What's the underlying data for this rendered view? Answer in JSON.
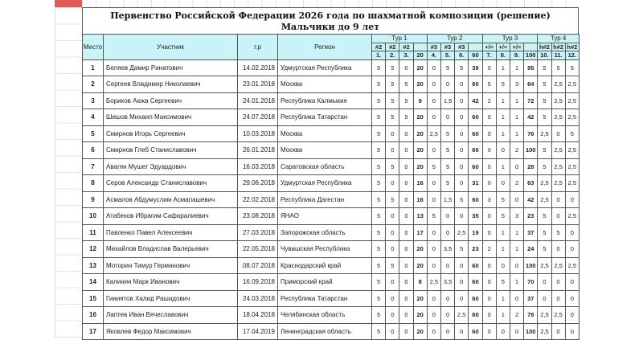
{
  "title": "Первенство Российской Федерации 2026 года по шахматной композиции (решение)",
  "subtitle": "Мальчики до 9 лет",
  "headers": {
    "place": "Место",
    "participant": "Участник",
    "birth": "г.р",
    "region": "Регион",
    "rounds": [
      "Тур 1",
      "Тур 2",
      "Тур 3",
      "Тур 4"
    ],
    "types": [
      "#2",
      "#2",
      "#2",
      "",
      "#3",
      "#3",
      "#3",
      "",
      "+/=",
      "+/=",
      "+/=",
      "",
      "h#2",
      "h#2",
      "h#2"
    ],
    "numbers": [
      "1.",
      "2.",
      "3.",
      "20",
      "4.",
      "5.",
      "6.",
      "60",
      "7.",
      "8.",
      "9.",
      "100",
      "10.",
      "11.",
      "12."
    ]
  },
  "rows": [
    {
      "place": "1",
      "name": "Беляев Дамир Ринатович",
      "birth": "14.02.2018",
      "region": "Удмуртская Республика",
      "scores": [
        "5",
        "5",
        "0",
        "20",
        "0",
        "5",
        "5",
        "39",
        "0",
        "1",
        "1",
        "95",
        "5",
        "5",
        "5"
      ]
    },
    {
      "place": "2",
      "name": "Сергеев Владимир Николаевич",
      "birth": "23.01.2018",
      "region": "Москва",
      "scores": [
        "5",
        "5",
        "5",
        "20",
        "0",
        "0",
        "0",
        "60",
        "5",
        "5",
        "3",
        "64",
        "5",
        "2,5",
        "2,5"
      ]
    },
    {
      "place": "3",
      "name": "Бориков Аюка Сергеевич",
      "birth": "24.01.2018",
      "region": "Республика Калмыкия",
      "scores": [
        "5",
        "5",
        "5",
        "9",
        "0",
        "1,5",
        "0",
        "42",
        "2",
        "1",
        "1",
        "72",
        "5",
        "2,5",
        "2,5"
      ]
    },
    {
      "place": "4",
      "name": "Шишов Михаил Максимович",
      "birth": "24.07.2018",
      "region": "Республика Татарстан",
      "scores": [
        "5",
        "5",
        "5",
        "20",
        "0",
        "0",
        "0",
        "60",
        "0",
        "1",
        "1",
        "42",
        "5",
        "2,5",
        "2,5"
      ]
    },
    {
      "place": "5",
      "name": "Смирнов Игорь Сергеевич",
      "birth": "10.03.2018",
      "region": "Москва",
      "scores": [
        "5",
        "0",
        "0",
        "20",
        "2,5",
        "5",
        "0",
        "60",
        "0",
        "1",
        "1",
        "76",
        "2,5",
        "0",
        "5"
      ]
    },
    {
      "place": "6",
      "name": "Смирнов Глеб Станиславович",
      "birth": "26.01.2018",
      "region": "Москва",
      "scores": [
        "5",
        "0",
        "0",
        "20",
        "0",
        "5",
        "0",
        "60",
        "0",
        "0",
        "2",
        "100",
        "5",
        "2,5",
        "2,5"
      ]
    },
    {
      "place": "7",
      "name": "Авагян Мушег Эдуардович",
      "birth": "16.03.2018",
      "region": "Саратовская область",
      "scores": [
        "5",
        "5",
        "0",
        "20",
        "5",
        "5",
        "0",
        "60",
        "0",
        "1",
        "0",
        "28",
        "5",
        "2,5",
        "2,5"
      ]
    },
    {
      "place": "8",
      "name": "Серов Александр Станиславович",
      "birth": "29.06.2018",
      "region": "Удмуртская Республика",
      "scores": [
        "5",
        "0",
        "0",
        "16",
        "0",
        "5",
        "0",
        "31",
        "0",
        "0",
        "2",
        "63",
        "2,5",
        "2,5",
        "2,5"
      ]
    },
    {
      "place": "9",
      "name": "Асмалов Абдумуслим Асмапашевич",
      "birth": "22.02.2018",
      "region": "Республика Дагестан",
      "scores": [
        "5",
        "5",
        "0",
        "16",
        "0",
        "1,5",
        "5",
        "60",
        "3",
        "5",
        "0",
        "42",
        "2,5",
        "0",
        "0"
      ]
    },
    {
      "place": "10",
      "name": "Атабеков Ибрагим Сафаралиевич",
      "birth": "23.08.2018",
      "region": "ЯНАО",
      "scores": [
        "5",
        "0",
        "0",
        "13",
        "5",
        "0",
        "0",
        "35",
        "0",
        "5",
        "3",
        "23",
        "5",
        "0",
        "2,5"
      ]
    },
    {
      "place": "11",
      "name": "Павленко Павел Алексеевич",
      "birth": "27.03.2018",
      "region": "Запорожская область",
      "scores": [
        "5",
        "0",
        "0",
        "17",
        "0",
        "0",
        "2,5",
        "19",
        "0",
        "1",
        "1",
        "37",
        "5",
        "5",
        "0"
      ]
    },
    {
      "place": "12",
      "name": "Михайлов Владислав Валерьевич",
      "birth": "22.05.2018",
      "region": "Чувашская Республика",
      "scores": [
        "5",
        "0",
        "0",
        "20",
        "0",
        "3,5",
        "5",
        "23",
        "2",
        "1",
        "1",
        "24",
        "5",
        "0",
        "0"
      ]
    },
    {
      "place": "13",
      "name": "Моторин Тимур Германович",
      "birth": "08.07.2018",
      "region": "Краснодарский край",
      "scores": [
        "5",
        "5",
        "0",
        "20",
        "0",
        "0",
        "0",
        "60",
        "0",
        "0",
        "0",
        "100",
        "2,5",
        "2,5",
        "2,5"
      ]
    },
    {
      "place": "14",
      "name": "Калинин Марк Иванович",
      "birth": "16.09.2018",
      "region": "Приморский край",
      "scores": [
        "5",
        "0",
        "0",
        "8",
        "2,5",
        "3,5",
        "0",
        "60",
        "0",
        "5",
        "1",
        "70",
        "0",
        "0",
        "0"
      ]
    },
    {
      "place": "15",
      "name": "Гиниятов Халид Рашидович",
      "birth": "24.03.2018",
      "region": "Республика Татарстан",
      "scores": [
        "5",
        "0",
        "0",
        "20",
        "0",
        "0",
        "0",
        "60",
        "0",
        "1",
        "0",
        "37",
        "0",
        "0",
        "0"
      ]
    },
    {
      "place": "16",
      "name": "Лаптев Иван Вячеславович",
      "birth": "18.04.2018",
      "region": "Челябинская область",
      "scores": [
        "5",
        "0",
        "0",
        "20",
        "0",
        "0",
        "2,5",
        "60",
        "0",
        "1",
        "2",
        "78",
        "2,5",
        "2,5",
        "0"
      ]
    },
    {
      "place": "17",
      "name": "Яковлев Федор Максимович",
      "birth": "17.04.2019",
      "region": "Ленинградская область",
      "scores": [
        "5",
        "0",
        "0",
        "20",
        "0",
        "0",
        "0",
        "60",
        "0",
        "0",
        "0",
        "100",
        "2,5",
        "0",
        "0"
      ]
    }
  ]
}
